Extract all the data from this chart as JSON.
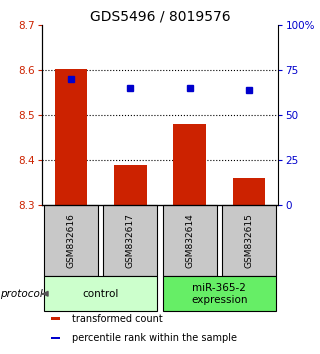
{
  "title": "GDS5496 / 8019576",
  "samples": [
    "GSM832616",
    "GSM832617",
    "GSM832614",
    "GSM832615"
  ],
  "bar_values": [
    8.601,
    8.39,
    8.48,
    8.36
  ],
  "percentile_values": [
    70.0,
    65.0,
    65.0,
    64.0
  ],
  "bar_color": "#cc2200",
  "dot_color": "#0000cc",
  "ylim_left": [
    8.3,
    8.7
  ],
  "ylim_right": [
    0,
    100
  ],
  "yticks_left": [
    8.3,
    8.4,
    8.5,
    8.6,
    8.7
  ],
  "yticks_right": [
    0,
    25,
    50,
    75,
    100
  ],
  "ytick_labels_right": [
    "0",
    "25",
    "50",
    "75",
    "100%"
  ],
  "groups": [
    {
      "label": "control",
      "indices": [
        0,
        1
      ],
      "color": "#ccffcc"
    },
    {
      "label": "miR-365-2\nexpression",
      "indices": [
        2,
        3
      ],
      "color": "#66ee66"
    }
  ],
  "protocol_label": "protocol",
  "legend_items": [
    {
      "color": "#cc2200",
      "label": "transformed count"
    },
    {
      "color": "#0000cc",
      "label": "percentile rank within the sample"
    }
  ],
  "bar_width": 0.55,
  "baseline": 8.3,
  "grid_color": "#000000",
  "sample_box_color": "#c8c8c8",
  "title_fontsize": 10,
  "tick_fontsize": 7.5,
  "sample_fontsize": 6.5,
  "group_fontsize": 7.5,
  "legend_fontsize": 7
}
